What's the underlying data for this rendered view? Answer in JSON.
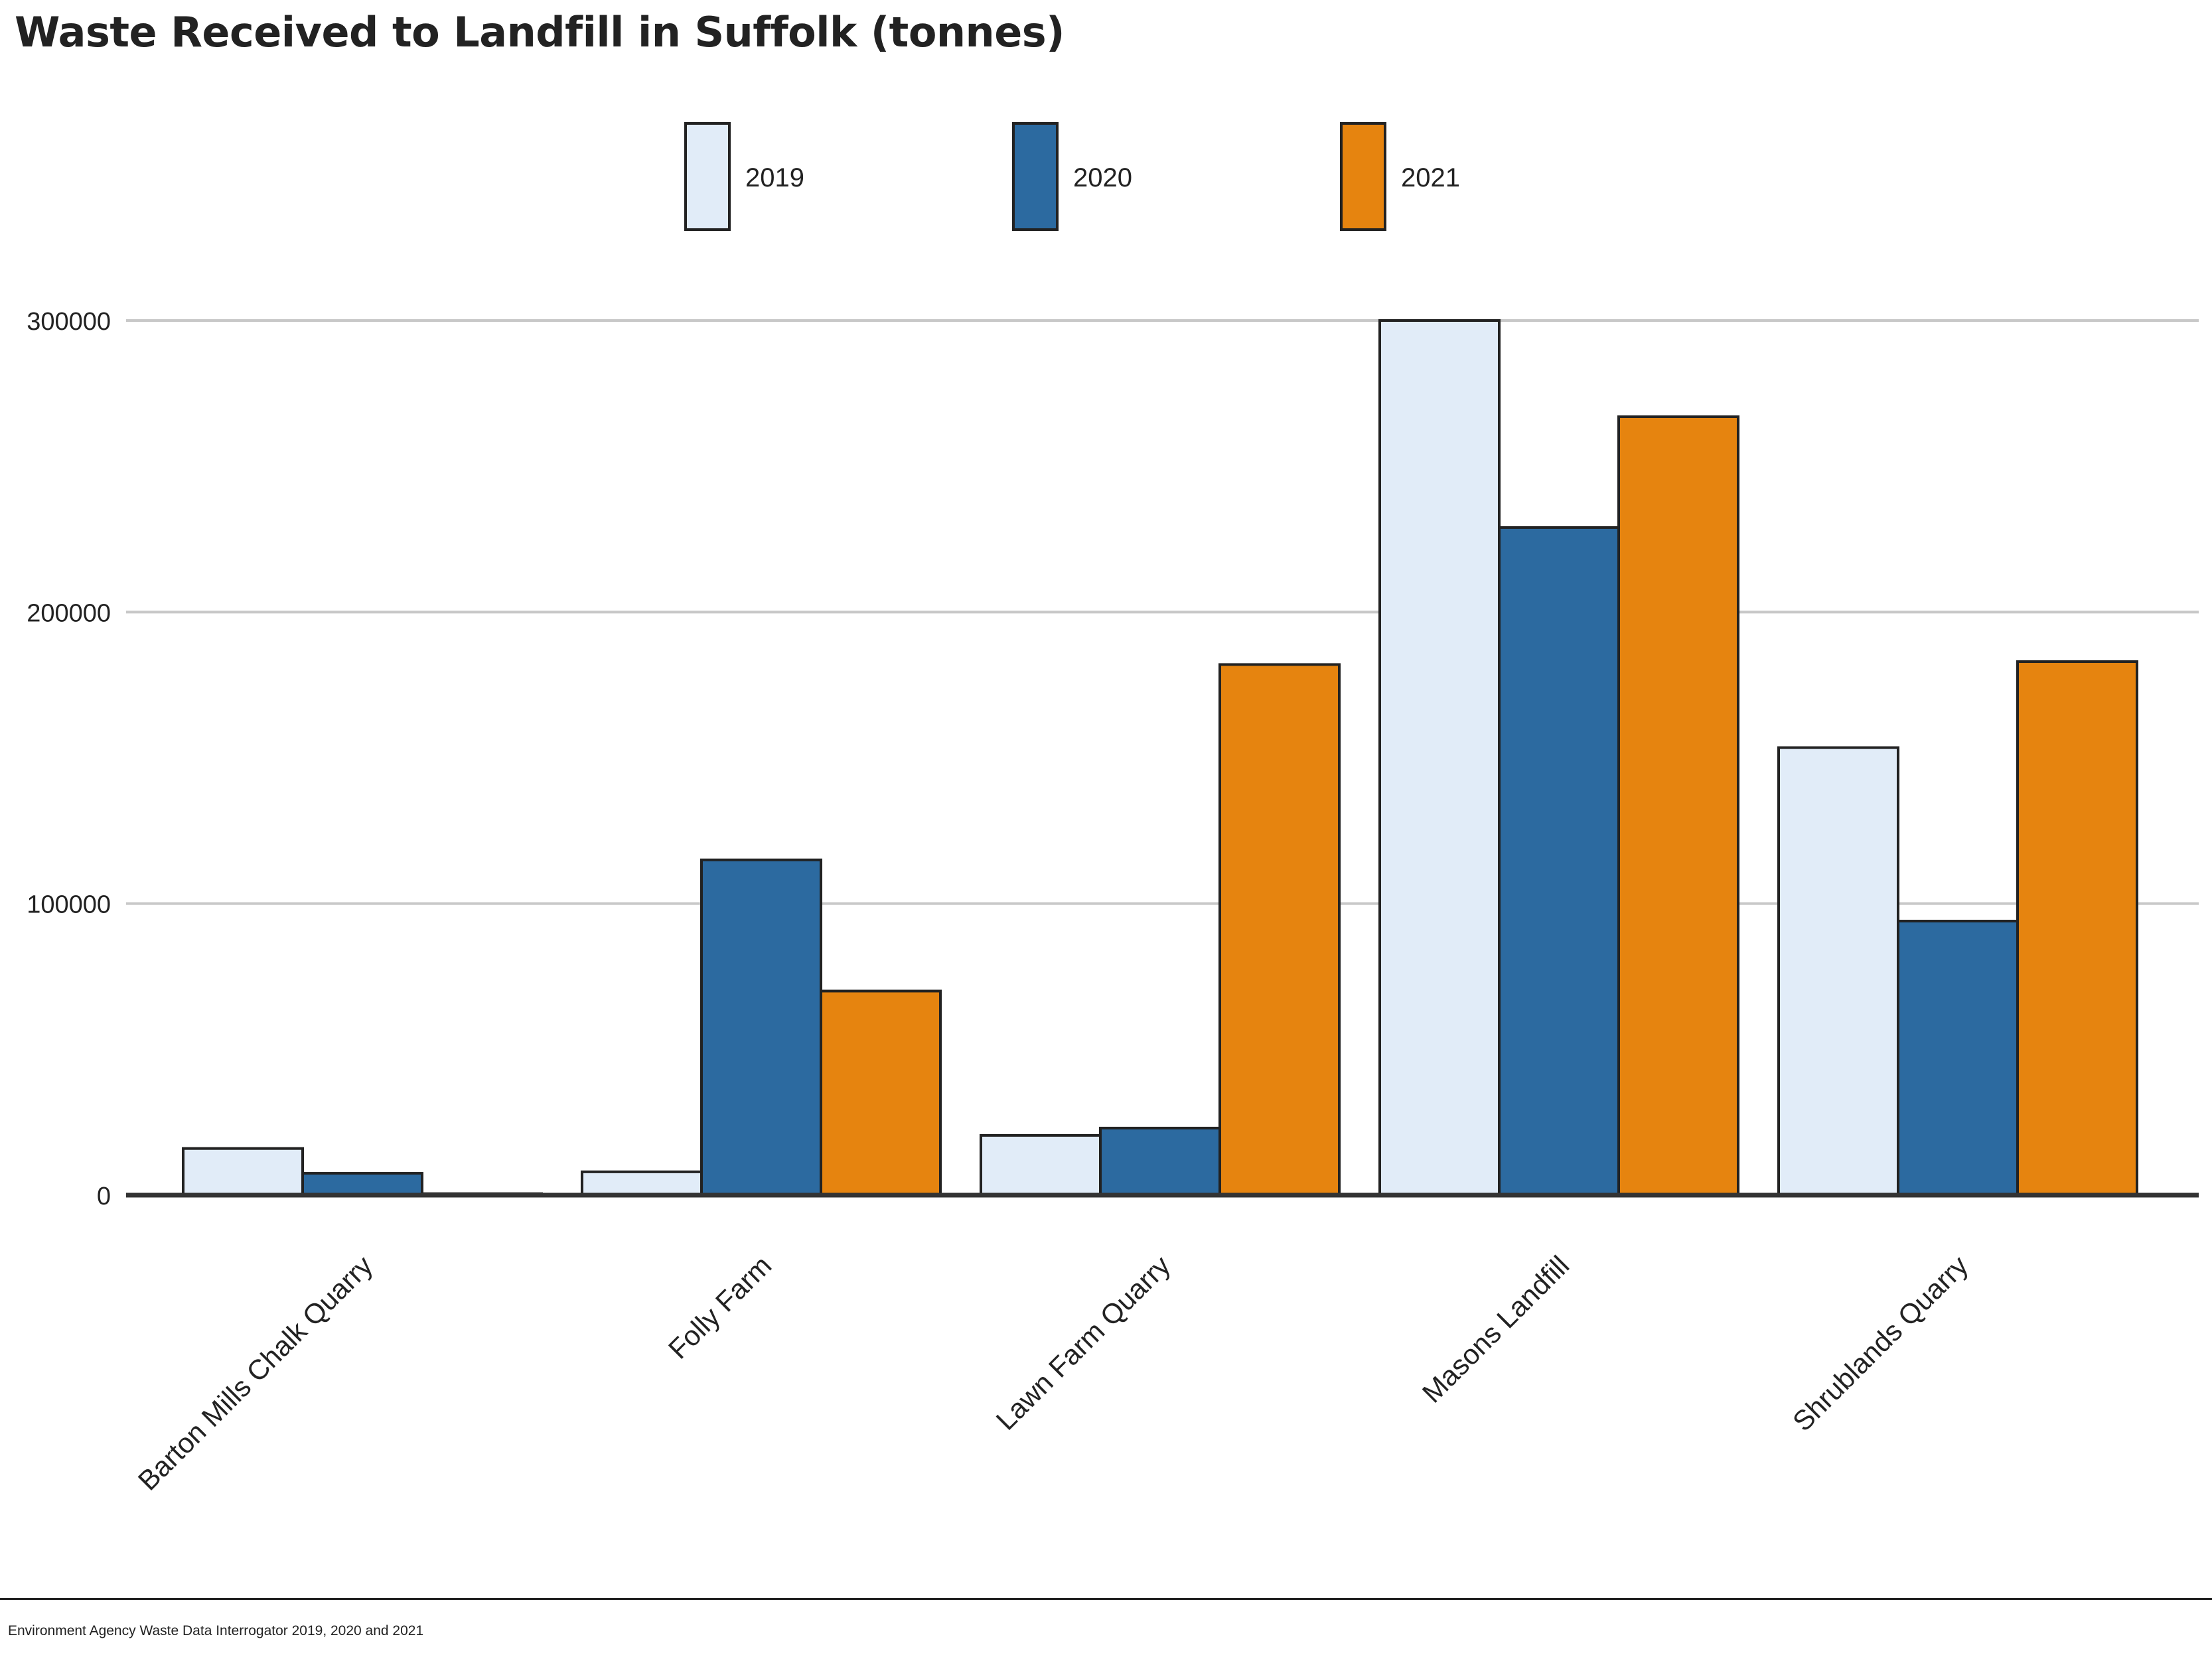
{
  "chart_data": {
    "type": "bar",
    "title": "Waste Received to Landfill in Suffolk (tonnes)",
    "categories": [
      "Barton Mills Chalk Quarry",
      "Folly Farm",
      "Lawn Farm Quarry",
      "Masons Landfill",
      "Shrublands Quarry"
    ],
    "series": [
      {
        "name": "2019",
        "color": "#e1ecf8",
        "values": [
          16000,
          8000,
          20500,
          300000,
          153500
        ]
      },
      {
        "name": "2020",
        "color": "#2c6aa0",
        "values": [
          7500,
          115000,
          23000,
          229000,
          94000
        ]
      },
      {
        "name": "2021",
        "color": "#e6840f",
        "values": [
          500,
          70000,
          182000,
          267000,
          183000
        ]
      }
    ],
    "yticks": [
      0,
      100000,
      200000,
      300000
    ],
    "ylim": [
      0,
      300000
    ],
    "xlabel": "",
    "ylabel": "",
    "grid": true,
    "legend_position": "top-center"
  },
  "source": "Environment Agency Waste Data Interrogator 2019, 2020 and 2021"
}
